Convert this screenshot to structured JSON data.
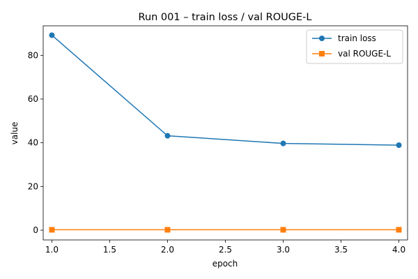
{
  "chart_data": {
    "type": "line",
    "title": "Run 001 – train loss / val ROUGE-L",
    "xlabel": "epoch",
    "ylabel": "value",
    "x": [
      1.0,
      2.0,
      3.0,
      4.0
    ],
    "xlim": [
      0.925,
      4.075
    ],
    "ylim": [
      -4.45,
      93.5
    ],
    "xticks": [
      1.0,
      1.5,
      2.0,
      2.5,
      3.0,
      3.5,
      4.0
    ],
    "xtick_labels": [
      "1.0",
      "1.5",
      "2.0",
      "2.5",
      "3.0",
      "3.5",
      "4.0"
    ],
    "yticks": [
      0,
      20,
      40,
      60,
      80
    ],
    "ytick_labels": [
      "0",
      "20",
      "40",
      "60",
      "80"
    ],
    "grid": false,
    "legend_position": "top-right",
    "series": [
      {
        "name": "train loss",
        "values": [
          89.2,
          43.2,
          39.7,
          38.9
        ],
        "color": "#1f77b4",
        "marker": "circle"
      },
      {
        "name": "val ROUGE-L",
        "values": [
          0.2,
          0.2,
          0.2,
          0.2
        ],
        "color": "#ff7f0e",
        "marker": "square"
      }
    ]
  }
}
